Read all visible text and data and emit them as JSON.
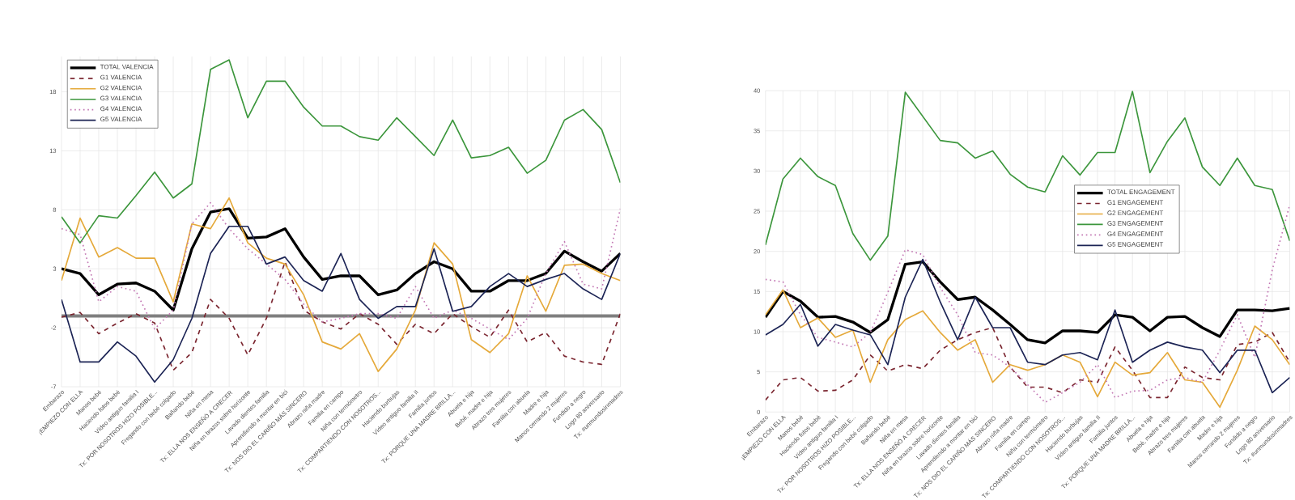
{
  "chart_data": [
    {
      "type": "line",
      "categories": [
        "Embarazo",
        "¡EMPIEZO CON ELLA",
        "Manos bebé",
        "Haciendo fotos bebé",
        "Vídeo antiguo familia I",
        "Tx: POR NOSOTROS HIZO POSIBLE...",
        "Fregando con bebé colgado",
        "Bañando bebé",
        "Niña en mesa",
        "Tx: ELLA NOS ENSEÑÓ A CRECER",
        "Niña en brazos sobre horizonte",
        "Lavado dientes familia",
        "Aprendiendo a montar en bici",
        "Tx: NOS DIO EL CARIÑO MÁS SINCERO",
        "Abrazo niña madre",
        "Familia en campo",
        "Niña con termómetro",
        "Tx: COMPARTIENDO CON NOSOTROS...",
        "Haciendo burbujas",
        "Vídeo antiguo familia II",
        "Familia juntos",
        "Tx: PORQUE UNA MADRE BRILLA...",
        "Abuela e hija",
        "Bebé, madre e hija",
        "Abrazo tres mujeres",
        "Familia con abuela",
        "Madre e hija",
        "Manos cerrando 2 mujeres",
        "Fundido a negro",
        "Logo 80 aniversario",
        "Tx: #unmundosinmadres"
      ],
      "ylim": [
        -7,
        21
      ],
      "yticks": [
        -7,
        -2,
        3,
        8,
        13,
        18
      ],
      "grid": true,
      "legend": "top left",
      "marker": "none",
      "ref_lines": [
        {
          "axis": "y",
          "value": -1,
          "color": "#7f7f7f"
        }
      ],
      "series": [
        {
          "name": "TOTAL VALENCIA",
          "color": "#000000",
          "line_style": "solid",
          "values": [
            3.0,
            2.6,
            0.8,
            1.7,
            1.8,
            1.1,
            -0.5,
            4.7,
            7.8,
            8.1,
            5.6,
            5.7,
            6.4,
            4.0,
            2.1,
            2.4,
            2.4,
            0.8,
            1.2,
            2.6,
            3.6,
            3.0,
            1.1,
            1.1,
            2.0,
            2.0,
            2.6,
            4.5,
            3.6,
            2.8,
            4.3
          ]
        },
        {
          "name": "G1 VALENCIA",
          "color": "#7b2630",
          "line_style": "dashed",
          "values": [
            -1.1,
            -0.7,
            -2.5,
            -1.6,
            -0.8,
            -1.6,
            -5.6,
            -4.1,
            0.4,
            -1.2,
            -4.3,
            -1.2,
            3.6,
            -0.5,
            -1.5,
            -2.1,
            -0.8,
            -1.7,
            -3.4,
            -1.7,
            -2.5,
            -0.8,
            -1.9,
            -2.8,
            -0.5,
            -3.2,
            -2.4,
            -4.4,
            -4.9,
            -5.1,
            -0.8
          ]
        },
        {
          "name": "G2 VALENCIA",
          "color": "#e5a93a",
          "line_style": "solid",
          "values": [
            2.0,
            7.3,
            4.0,
            4.8,
            3.9,
            3.9,
            0.2,
            6.8,
            6.4,
            9.0,
            5.2,
            3.9,
            3.4,
            0.8,
            -3.2,
            -3.8,
            -2.5,
            -5.7,
            -3.8,
            -0.5,
            5.2,
            3.4,
            -3.0,
            -4.1,
            -2.5,
            2.4,
            -0.6,
            3.3,
            3.4,
            2.6,
            2.0
          ]
        },
        {
          "name": "G3 VALENCIA",
          "color": "#3c963c",
          "line_style": "solid",
          "values": [
            7.4,
            5.2,
            7.5,
            7.3,
            9.2,
            11.2,
            9.0,
            10.2,
            19.9,
            20.7,
            15.8,
            18.9,
            18.9,
            16.7,
            15.1,
            15.1,
            14.2,
            13.9,
            15.8,
            14.2,
            12.6,
            15.6,
            12.4,
            12.6,
            13.3,
            11.1,
            12.2,
            15.6,
            16.5,
            14.8,
            10.3
          ]
        },
        {
          "name": "G4 VALENCIA",
          "color": "#c378b4",
          "line_style": "dotted",
          "values": [
            6.4,
            5.9,
            0.2,
            1.5,
            1.1,
            -2.1,
            -0.5,
            6.8,
            8.6,
            6.4,
            4.7,
            3.4,
            2.1,
            0.0,
            -1.5,
            -1.2,
            -0.8,
            -0.8,
            -1.2,
            1.5,
            -1.2,
            -0.5,
            -1.2,
            -2.1,
            -3.0,
            -1.2,
            2.6,
            5.3,
            1.7,
            1.3,
            8.1
          ]
        },
        {
          "name": "G5 VALENCIA",
          "color": "#1c2455",
          "line_style": "solid",
          "values": [
            0.4,
            -4.9,
            -4.9,
            -3.2,
            -4.4,
            -6.6,
            -4.7,
            -1.2,
            4.3,
            6.6,
            6.6,
            3.4,
            4.0,
            2.0,
            1.1,
            4.3,
            0.4,
            -1.2,
            -0.2,
            -0.2,
            4.7,
            -0.6,
            -0.2,
            1.5,
            2.6,
            1.5,
            2.1,
            2.6,
            1.3,
            0.4,
            4.3
          ]
        }
      ]
    },
    {
      "type": "line",
      "categories": [
        "Embarazo",
        "¡EMPIEZO CON ELLA",
        "Manos bebé",
        "Haciendo fotos bebé",
        "Vídeo antiguo familia I",
        "Tx: POR NOSOTROS HIZO POSIBLE...",
        "Fregando con bebé colgado",
        "Bañando bebé",
        "Niña en mesa",
        "Tx: ELLA NOS ENSEÑÓ A CRECER",
        "Niña en brazos sobre horizonte",
        "Lavado dientes familia",
        "Aprendiendo a montar en bici",
        "Tx: NOS DIO EL CARIÑO MÁS SINCERO",
        "Abrazo niña madre",
        "Familia en campo",
        "Niña con termómetro",
        "Tx: COMPARTIENDO CON NOSOTROS...",
        "Haciendo burbujas",
        "Vídeo antiguo familia II",
        "Familia juntos",
        "Tx: PORQUE UNA MADRE BRILLA...",
        "Abuela e hija",
        "Bebé, madre e hija",
        "Abrazo tres mujeres",
        "Familia con abuela",
        "Madre e hija",
        "Manos cerrando 2 mujeres",
        "Fundido a negro",
        "Logo 80 aniversario",
        "Tx: #unmundosinmadres"
      ],
      "ylim": [
        0,
        40
      ],
      "yticks": [
        0,
        5,
        10,
        15,
        20,
        25,
        30,
        35,
        40
      ],
      "grid": true,
      "legend": "right",
      "marker": "none",
      "series": [
        {
          "name": "TOTAL ENGAGEMENT",
          "color": "#000000",
          "line_style": "solid",
          "values": [
            11.8,
            15.0,
            13.8,
            11.8,
            11.9,
            11.2,
            9.9,
            11.5,
            18.4,
            18.7,
            16.2,
            14.0,
            14.3,
            12.7,
            10.9,
            9.0,
            8.6,
            10.1,
            10.1,
            9.9,
            12.1,
            11.8,
            10.1,
            11.8,
            11.9,
            10.5,
            9.4,
            12.7,
            12.7,
            12.6,
            12.9
          ]
        },
        {
          "name": "G1 ENGAGEMENT",
          "color": "#7b2630",
          "line_style": "dashed",
          "values": [
            1.5,
            4.0,
            4.3,
            2.6,
            2.7,
            4.0,
            7.1,
            5.1,
            5.9,
            5.4,
            7.7,
            9.0,
            9.9,
            10.5,
            5.6,
            3.1,
            3.1,
            2.4,
            4.0,
            3.7,
            8.1,
            5.2,
            1.8,
            1.8,
            5.6,
            4.3,
            4.0,
            8.4,
            8.7,
            9.9,
            6.2
          ]
        },
        {
          "name": "G2 ENGAGEMENT",
          "color": "#e5a93a",
          "line_style": "solid",
          "values": [
            12.1,
            15.2,
            10.5,
            11.7,
            9.3,
            10.2,
            3.7,
            9.0,
            11.5,
            12.6,
            9.9,
            7.7,
            9.0,
            3.7,
            5.9,
            5.2,
            5.9,
            7.1,
            6.2,
            1.9,
            6.2,
            4.6,
            4.9,
            7.4,
            4.0,
            3.7,
            0.6,
            5.2,
            10.7,
            9.0,
            5.9
          ]
        },
        {
          "name": "G3 ENGAGEMENT",
          "color": "#3c963c",
          "line_style": "solid",
          "values": [
            20.8,
            29.0,
            31.6,
            29.3,
            28.2,
            22.2,
            18.9,
            21.9,
            39.8,
            36.8,
            33.8,
            33.5,
            31.6,
            32.5,
            29.6,
            28.0,
            27.4,
            31.9,
            29.5,
            32.3,
            32.3,
            39.9,
            29.8,
            33.7,
            36.6,
            30.5,
            28.2,
            31.6,
            28.2,
            27.7,
            21.3
          ]
        },
        {
          "name": "G4 ENGAGEMENT",
          "color": "#c378b4",
          "line_style": "dotted",
          "values": [
            16.5,
            16.2,
            12.1,
            9.3,
            8.7,
            8.1,
            9.9,
            14.9,
            20.2,
            19.6,
            15.5,
            12.1,
            7.4,
            7.1,
            5.6,
            3.4,
            1.2,
            2.4,
            3.7,
            5.9,
            1.8,
            2.6,
            2.7,
            4.0,
            4.3,
            3.7,
            7.7,
            12.1,
            6.8,
            17.7,
            25.8
          ]
        },
        {
          "name": "G5 ENGAGEMENT",
          "color": "#1c2455",
          "line_style": "solid",
          "values": [
            9.6,
            10.9,
            13.4,
            8.2,
            10.9,
            10.2,
            9.6,
            5.9,
            14.3,
            19.0,
            13.7,
            9.0,
            14.3,
            10.5,
            10.5,
            6.2,
            5.9,
            7.1,
            7.4,
            6.5,
            12.7,
            6.2,
            7.7,
            8.7,
            8.1,
            7.7,
            4.9,
            7.7,
            7.7,
            2.4,
            4.3
          ]
        }
      ]
    }
  ]
}
